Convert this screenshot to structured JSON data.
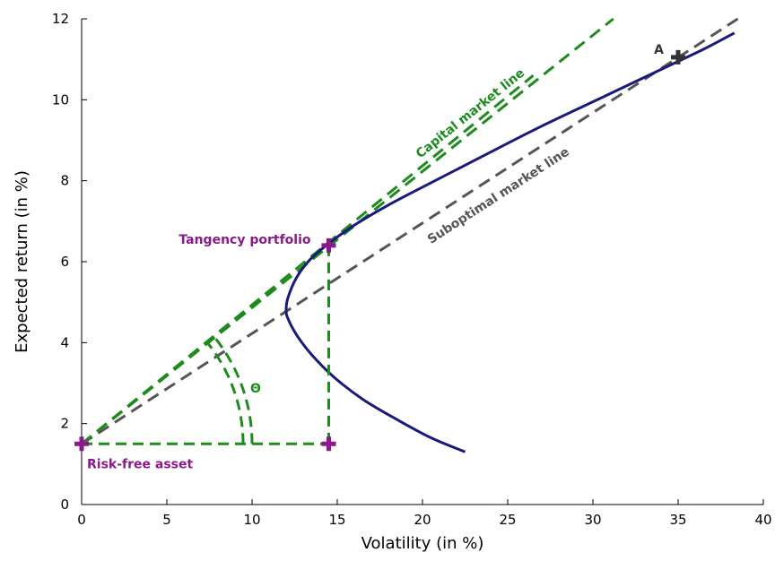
{
  "chart_data": {
    "type": "line",
    "title": "",
    "xlabel": "Volatility (in %)",
    "ylabel": "Expected return (in %)",
    "xlim": [
      0,
      40
    ],
    "ylim": [
      0,
      12
    ],
    "xticks": [
      "0",
      "5",
      "10",
      "15",
      "20",
      "25",
      "30",
      "35",
      "40"
    ],
    "yticks": [
      "0",
      "2",
      "4",
      "6",
      "8",
      "10",
      "12"
    ],
    "grid": false,
    "legend": "none",
    "colors": {
      "frontier": "#1a1a7a",
      "capital_market_line": "#1f8a1f",
      "suboptimal_market_line": "#555555",
      "portfolio_points": "#8a1a8a",
      "asset_a": "#333333"
    },
    "frontier": {
      "x": [
        22.5,
        20.5,
        18.5,
        16.5,
        14.8,
        13.5,
        12.6,
        12.1,
        12.0,
        12.1,
        12.6,
        13.4,
        14.5,
        16.0,
        18.0,
        20.5,
        23.5,
        27.0,
        30.5,
        34.0,
        36.5,
        38.3
      ],
      "y": [
        1.3,
        1.65,
        2.1,
        2.6,
        3.15,
        3.7,
        4.2,
        4.6,
        4.8,
        5.1,
        5.6,
        6.05,
        6.45,
        6.9,
        7.4,
        7.95,
        8.6,
        9.35,
        10.05,
        10.75,
        11.25,
        11.65
      ]
    },
    "capital_market_line": {
      "label": "Capital market line",
      "lines": [
        {
          "x": [
            0,
            31.2
          ],
          "y": [
            1.5,
            12
          ]
        },
        {
          "x": [
            0,
            26.5
          ],
          "y": [
            1.5,
            10.6
          ]
        }
      ]
    },
    "suboptimal_market_line": {
      "label": "Suboptimal market line",
      "x": [
        0,
        38.5
      ],
      "y": [
        1.5,
        12
      ]
    },
    "points": {
      "risk_free": {
        "label": "Risk-free asset",
        "x": 0,
        "y": 1.5
      },
      "tangency": {
        "label": "Tangency portfolio",
        "x": 14.5,
        "y": 6.4
      },
      "projection": {
        "x": 14.5,
        "y": 1.5
      },
      "asset_a": {
        "label": "A",
        "x": 35,
        "y": 11.05
      }
    },
    "theta_label": "Θ"
  }
}
